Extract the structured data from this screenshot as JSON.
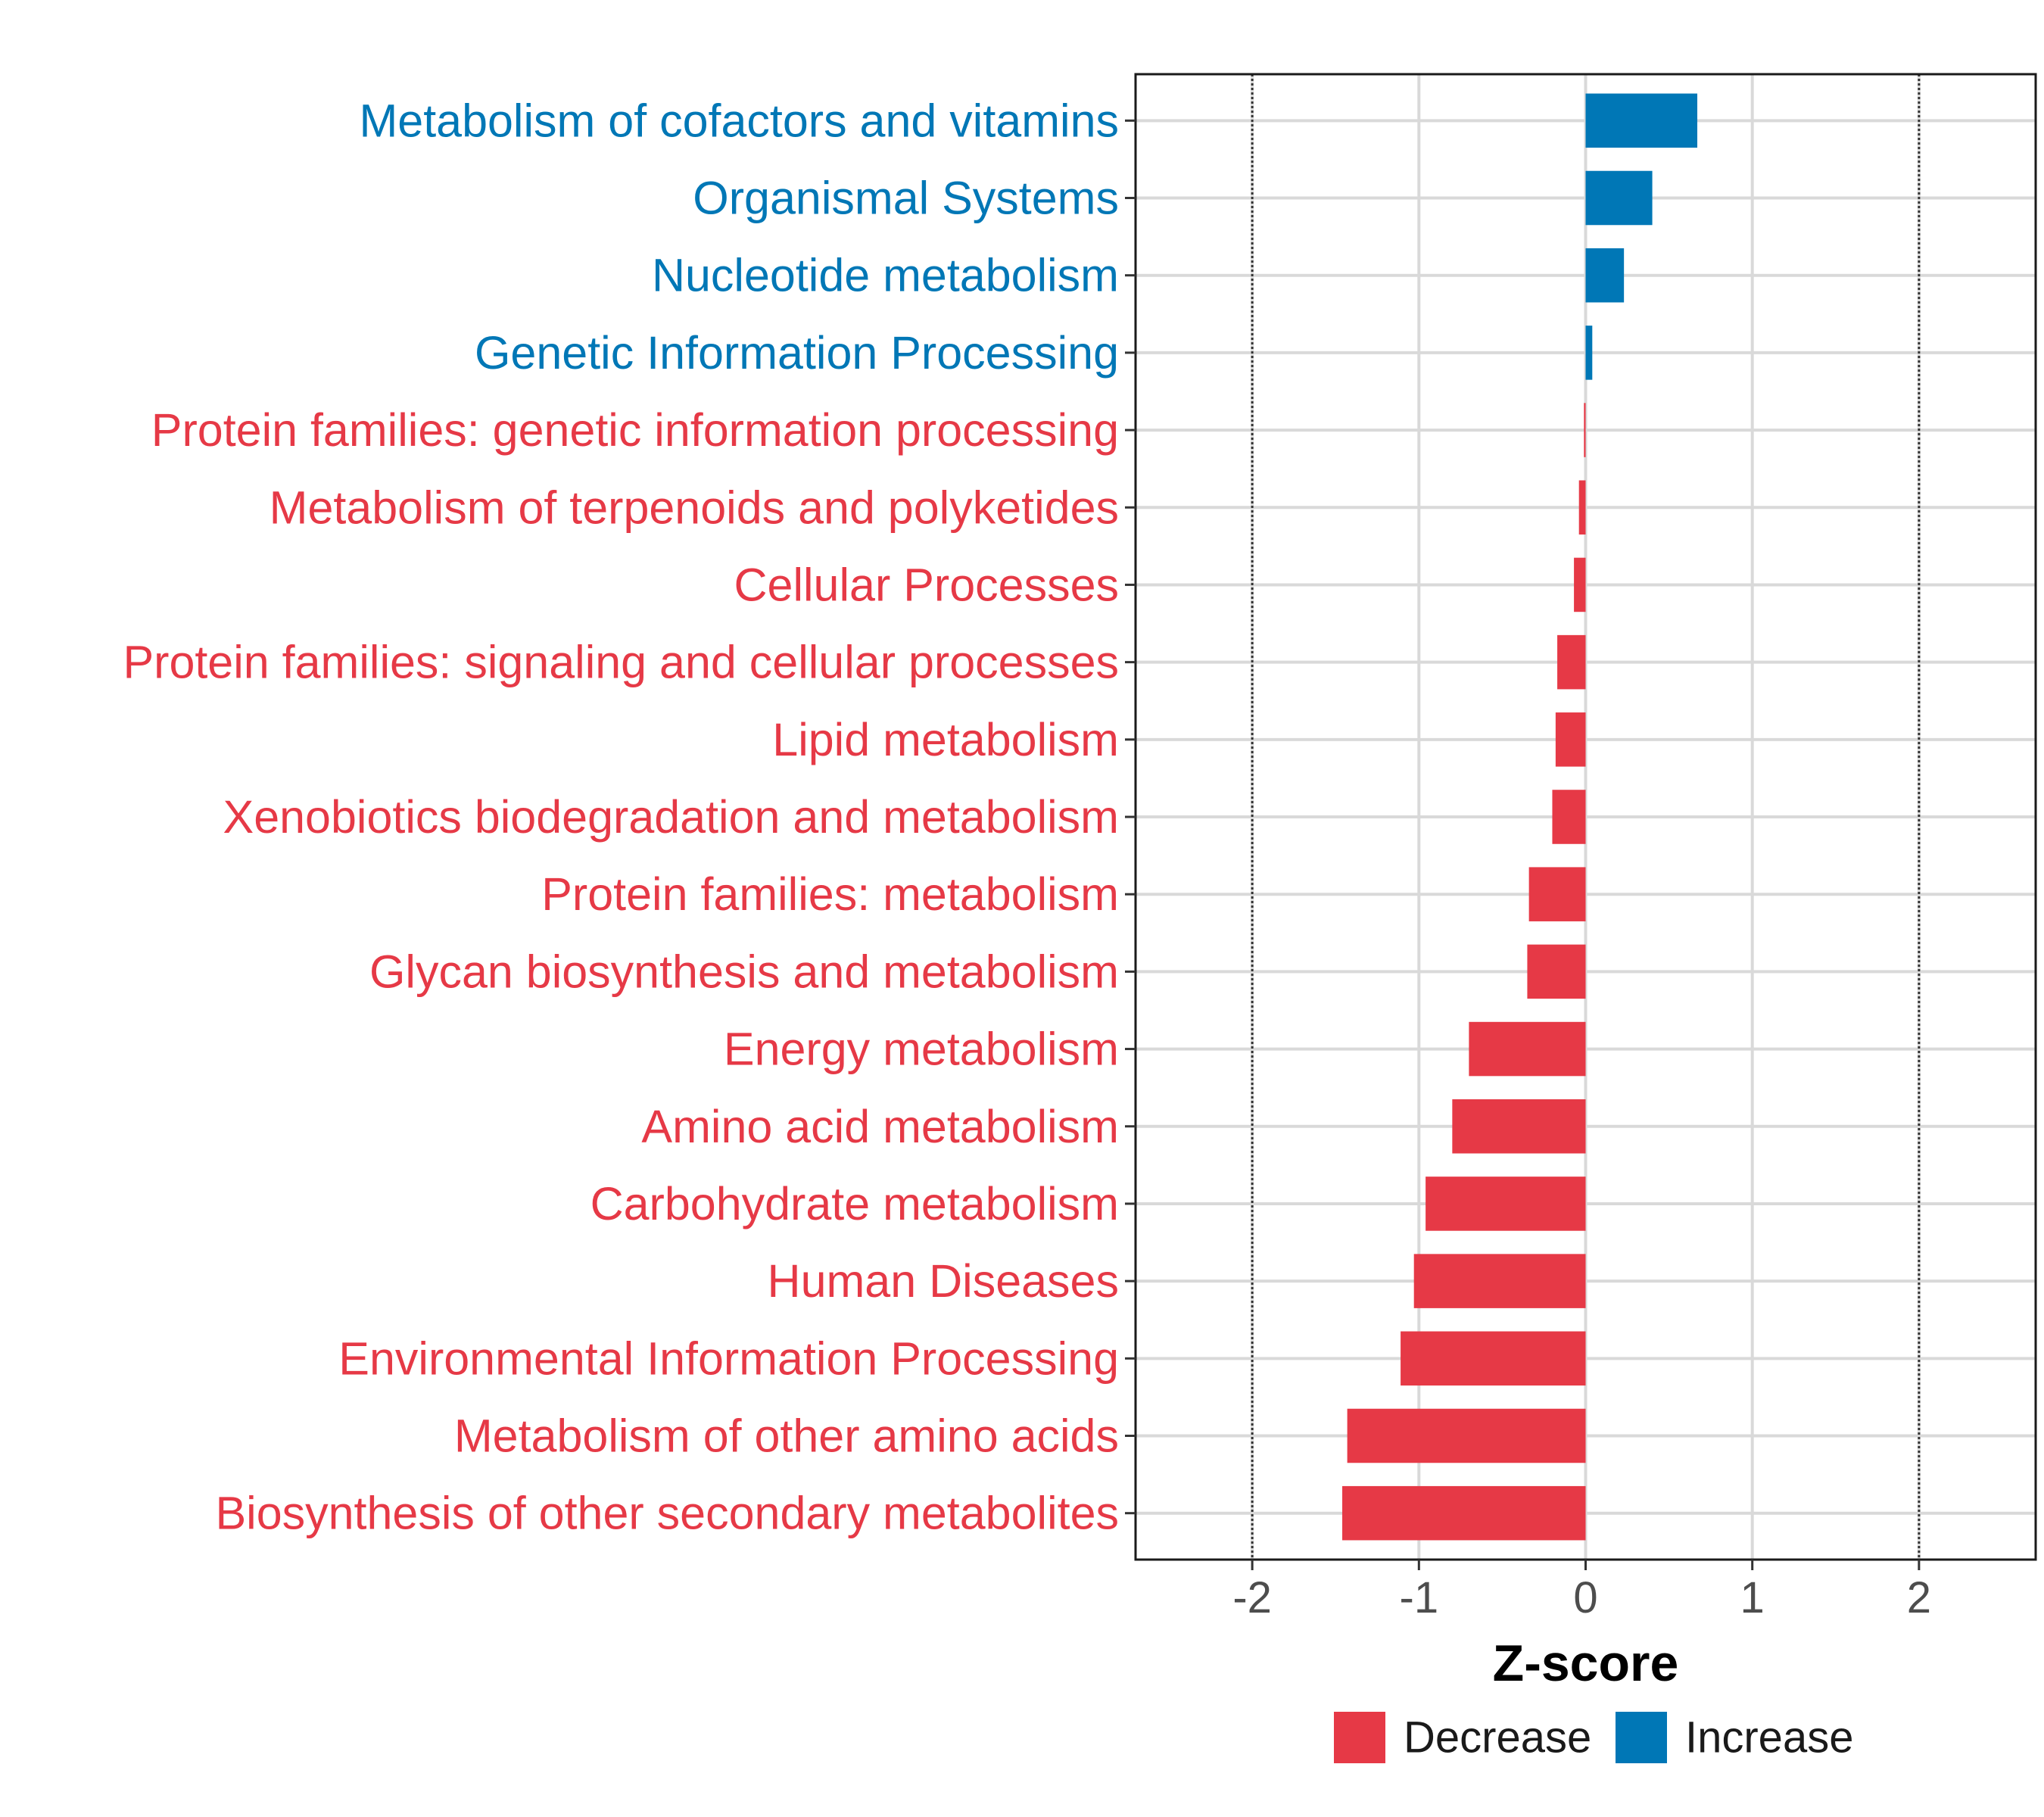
{
  "chart_data": {
    "type": "bar",
    "orientation": "horizontal",
    "xlabel": "Z-score",
    "ylabel": "",
    "xlim": [
      -2.7,
      2.7
    ],
    "xticks": [
      -2,
      -1,
      0,
      1,
      2
    ],
    "xtick_labels": [
      "-2",
      "-1",
      "0",
      "1",
      "2"
    ],
    "reference_lines": [
      -2,
      2
    ],
    "grid": true,
    "colors": {
      "Decrease": "#e63946",
      "Increase": "#0077b6"
    },
    "categories": [
      "Metabolism of cofactors and vitamins",
      "Organismal Systems",
      "Nucleotide metabolism",
      "Genetic Information Processing",
      "Protein families: genetic information processing",
      "Metabolism of terpenoids and polyketides",
      "Cellular Processes",
      "Protein families: signaling and cellular processes",
      "Lipid metabolism",
      "Xenobiotics biodegradation and metabolism",
      "Protein families: metabolism",
      "Glycan biosynthesis and metabolism",
      "Energy metabolism",
      "Amino acid metabolism",
      "Carbohydrate metabolism",
      "Human Diseases",
      "Environmental Information Processing",
      "Metabolism of other amino acids",
      "Biosynthesis of other secondary metabolites"
    ],
    "values": [
      0.67,
      0.4,
      0.23,
      0.04,
      -0.01,
      -0.04,
      -0.07,
      -0.17,
      -0.18,
      -0.2,
      -0.34,
      -0.35,
      -0.7,
      -0.8,
      -0.96,
      -1.03,
      -1.11,
      -1.43,
      -1.46
    ],
    "groups": [
      "Increase",
      "Increase",
      "Increase",
      "Increase",
      "Decrease",
      "Decrease",
      "Decrease",
      "Decrease",
      "Decrease",
      "Decrease",
      "Decrease",
      "Decrease",
      "Decrease",
      "Decrease",
      "Decrease",
      "Decrease",
      "Decrease",
      "Decrease",
      "Decrease"
    ],
    "legend": {
      "position": "bottom",
      "entries": [
        {
          "label": "Decrease",
          "color": "#e63946"
        },
        {
          "label": "Increase",
          "color": "#0077b6"
        }
      ]
    }
  }
}
